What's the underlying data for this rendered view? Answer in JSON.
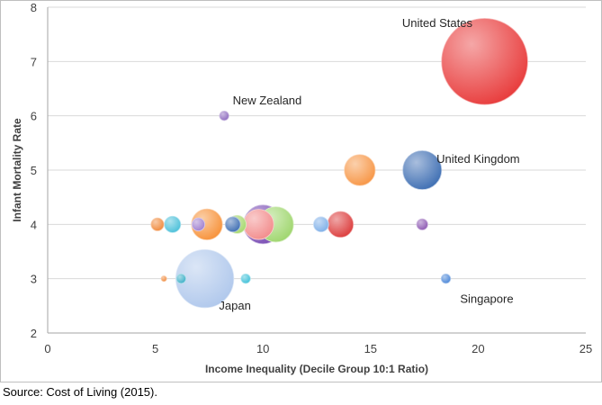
{
  "chart_data": {
    "type": "scatter",
    "subtype": "bubble",
    "title": "",
    "xlabel": "Income Inequality (Decile Group 10:1 Ratio)",
    "ylabel": "Infant Mortality Rate",
    "xlim": [
      0,
      25
    ],
    "ylim": [
      2,
      8
    ],
    "xticks": [
      0,
      5,
      10,
      15,
      20,
      25
    ],
    "yticks": [
      2,
      3,
      4,
      5,
      6,
      7,
      8
    ],
    "grid": "horizontal",
    "legend": "none",
    "points": [
      {
        "x": 20.3,
        "y": 7.0,
        "r": 2.0,
        "color": "#e83c3c",
        "label": "United States"
      },
      {
        "x": 8.2,
        "y": 6.0,
        "r": 0.22,
        "color": "#8e6bbf",
        "label": "New Zealand"
      },
      {
        "x": 17.4,
        "y": 5.0,
        "r": 0.9,
        "color": "#3f6fb3",
        "label": "United Kingdom"
      },
      {
        "x": 14.5,
        "y": 5.0,
        "r": 0.72,
        "color": "#f79646",
        "label": ""
      },
      {
        "x": 5.1,
        "y": 4.0,
        "r": 0.3,
        "color": "#f08a3c",
        "label": ""
      },
      {
        "x": 5.8,
        "y": 4.0,
        "r": 0.38,
        "color": "#4bc0d9",
        "label": ""
      },
      {
        "x": 7.4,
        "y": 4.0,
        "r": 0.72,
        "color": "#f7923a",
        "label": ""
      },
      {
        "x": 7.0,
        "y": 4.0,
        "r": 0.3,
        "color": "#9f7fcf",
        "label": ""
      },
      {
        "x": 8.8,
        "y": 4.0,
        "r": 0.42,
        "color": "#a6d86e",
        "label": ""
      },
      {
        "x": 8.6,
        "y": 4.0,
        "r": 0.35,
        "color": "#3f6fb3",
        "label": ""
      },
      {
        "x": 10.6,
        "y": 4.0,
        "r": 0.82,
        "color": "#9fd66e",
        "label": ""
      },
      {
        "x": 10.0,
        "y": 4.0,
        "r": 0.9,
        "color": "#7b4fb5",
        "label": ""
      },
      {
        "x": 9.8,
        "y": 4.0,
        "r": 0.7,
        "color": "#f28c8c",
        "label": ""
      },
      {
        "x": 12.7,
        "y": 4.0,
        "r": 0.35,
        "color": "#7fb0e8",
        "label": ""
      },
      {
        "x": 13.6,
        "y": 4.0,
        "r": 0.6,
        "color": "#dc3c3c",
        "label": ""
      },
      {
        "x": 17.4,
        "y": 4.0,
        "r": 0.26,
        "color": "#8e5ab3",
        "label": ""
      },
      {
        "x": 5.4,
        "y": 3.0,
        "r": 0.13,
        "color": "#f08a3c",
        "label": ""
      },
      {
        "x": 6.2,
        "y": 3.0,
        "r": 0.22,
        "color": "#3db0c8",
        "label": ""
      },
      {
        "x": 7.3,
        "y": 3.0,
        "r": 1.35,
        "color": "#b0c8ec",
        "label": "Japan"
      },
      {
        "x": 9.2,
        "y": 3.0,
        "r": 0.22,
        "color": "#3ec0d8",
        "label": ""
      },
      {
        "x": 18.5,
        "y": 3.0,
        "r": 0.22,
        "color": "#4a86d8",
        "label": "Singapore"
      }
    ]
  },
  "source_note": "Source: Cost of Living (2015)."
}
